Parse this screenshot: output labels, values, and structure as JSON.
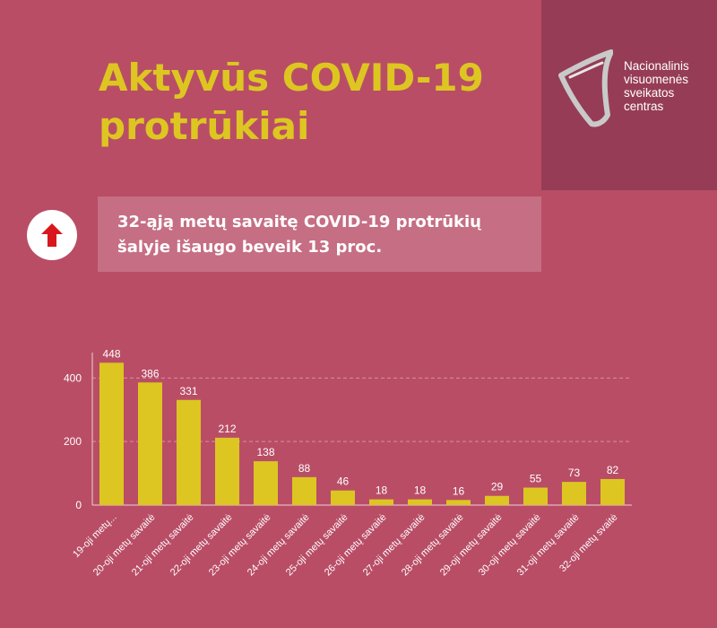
{
  "header": {
    "title": "Aktyvūs COVID-19 protrūkiai"
  },
  "logo": {
    "lines": [
      "Nacionalinis",
      "visuomenės",
      "sveikatos",
      "centras"
    ],
    "panel_color": "#963c56"
  },
  "callout": {
    "icon": "arrow-up-icon",
    "icon_color": "#d9161e",
    "text": "32-ąją metų savaitę COVID-19 protrūkių šalyje išaugo beveik 13 proc."
  },
  "colors": {
    "background": "#b94d66",
    "accent": "#ddc621",
    "bar": "#ddc621"
  },
  "chart_data": {
    "type": "bar",
    "categories": [
      "19-oji metų...",
      "20-oji metų savaitė",
      "21-oji metų savaitė",
      "22-oji metų savaitė",
      "23-oji metų savaitė",
      "24-oji metų savaitė",
      "25-oji metų savaitė",
      "26-oji metų savaitė",
      "27-oji metų savaitė",
      "28-oji metų savaitė",
      "29-oji metų savaitė",
      "30-oji metų savaitė",
      "31-oji metų savaitė",
      "32-oji metų svaitė"
    ],
    "values": [
      448,
      386,
      331,
      212,
      138,
      88,
      46,
      18,
      18,
      16,
      29,
      55,
      73,
      82
    ],
    "yticks": [
      0,
      200,
      400
    ],
    "ylim": [
      0,
      480
    ],
    "grid": true,
    "data_labels": true,
    "legend": false
  }
}
